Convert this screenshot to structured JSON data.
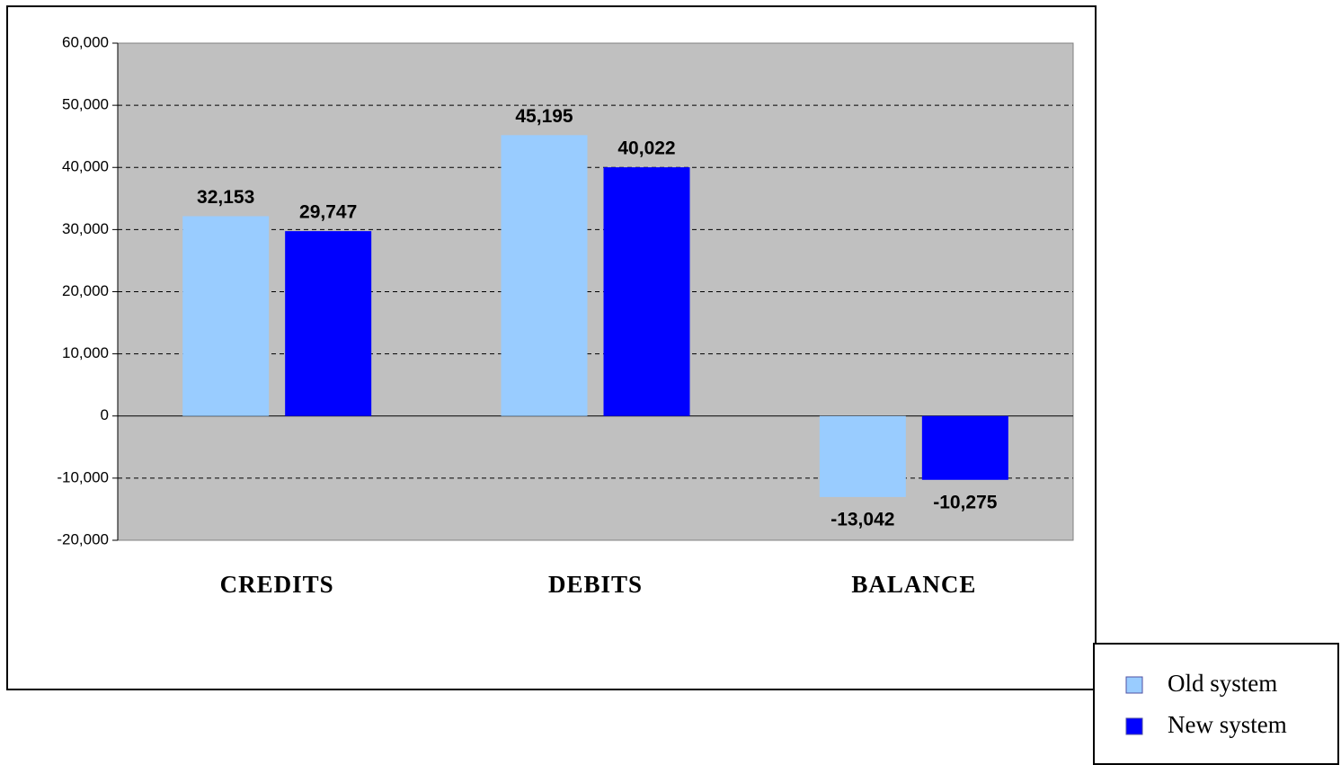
{
  "chart_data": {
    "type": "bar",
    "categories": [
      "CREDITS",
      "DEBITS",
      "BALANCE"
    ],
    "series": [
      {
        "name": "Old system",
        "color": "#99ccff",
        "values": [
          32153,
          45195,
          -13042
        ],
        "value_labels": [
          "32,153",
          "45,195",
          "-13,042"
        ]
      },
      {
        "name": "New system",
        "color": "#0000ff",
        "values": [
          29747,
          40022,
          -10275
        ],
        "value_labels": [
          "29,747",
          "40,022",
          "-10,275"
        ]
      }
    ],
    "ylim": [
      -20000,
      60000
    ],
    "yticks": [
      {
        "value": -20000,
        "label": "-20,000"
      },
      {
        "value": -10000,
        "label": "-10,000"
      },
      0,
      {
        "value": 10000,
        "label": "10,000"
      },
      {
        "value": 20000,
        "label": "20,000"
      },
      {
        "value": 30000,
        "label": "30,000"
      },
      {
        "value": 40000,
        "label": "40,000"
      },
      {
        "value": 50000,
        "label": "50,000"
      },
      {
        "value": 60000,
        "label": "60,000"
      }
    ],
    "grid": true,
    "legend": "bottom-right"
  }
}
